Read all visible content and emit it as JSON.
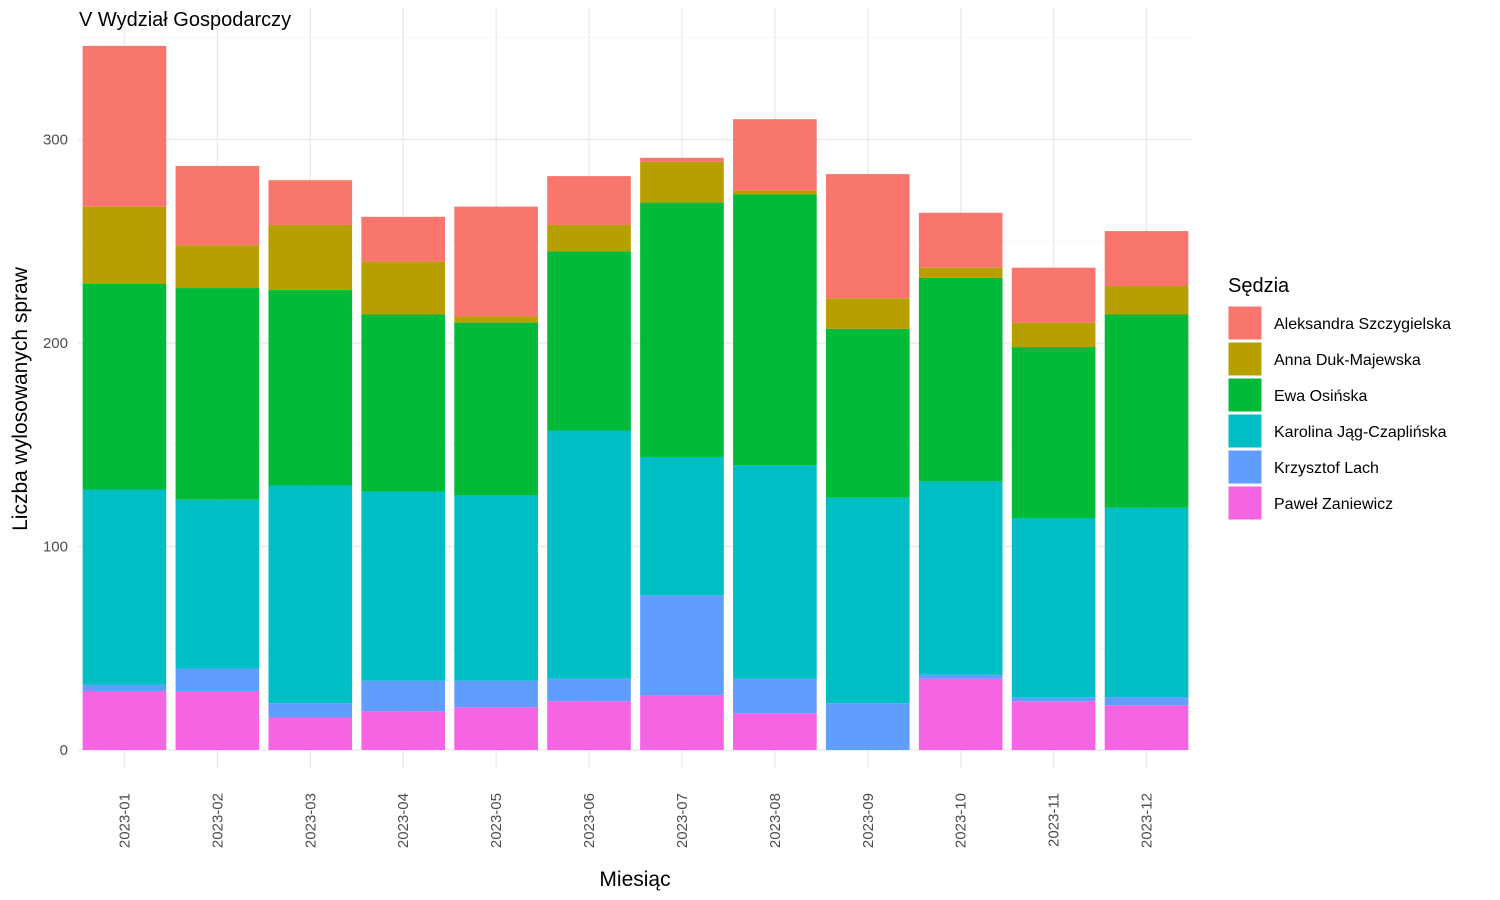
{
  "chart_data": {
    "type": "bar",
    "stacked": true,
    "title": "V Wydział Gospodarczy",
    "xlabel": "Miesiąc",
    "ylabel": "Liczba wylosowanych spraw",
    "ylim": [
      0,
      350
    ],
    "yticks": [
      0,
      100,
      200,
      300
    ],
    "grid": true,
    "legend_position": "right",
    "legend_title": "Sędzia",
    "categories": [
      "2023-01",
      "2023-02",
      "2023-03",
      "2023-04",
      "2023-05",
      "2023-06",
      "2023-07",
      "2023-08",
      "2023-09",
      "2023-10",
      "2023-11",
      "2023-12"
    ],
    "stack_order": [
      "Paweł Zaniewicz",
      "Krzysztof Lach",
      "Karolina Jąg-Czaplińska",
      "Ewa Osińska",
      "Anna Duk-Majewska",
      "Aleksandra Szczygielska"
    ],
    "series": [
      {
        "name": "Aleksandra Szczygielska",
        "color": "#F8766D",
        "values": [
          79,
          39,
          22,
          22,
          54,
          24,
          2,
          35,
          61,
          27,
          27,
          27
        ]
      },
      {
        "name": "Anna Duk-Majewska",
        "color": "#B79F00",
        "values": [
          38,
          21,
          32,
          26,
          3,
          13,
          20,
          2,
          15,
          5,
          12,
          14
        ]
      },
      {
        "name": "Ewa Osińska",
        "color": "#00BA38",
        "values": [
          101,
          104,
          96,
          87,
          85,
          88,
          125,
          133,
          83,
          100,
          84,
          95
        ]
      },
      {
        "name": "Karolina Jąg-Czaplińska",
        "color": "#00BFC4",
        "values": [
          96,
          83,
          107,
          93,
          91,
          122,
          68,
          105,
          101,
          95,
          88,
          93
        ]
      },
      {
        "name": "Krzysztof Lach",
        "color": "#619CFF",
        "values": [
          3,
          11,
          7,
          15,
          13,
          11,
          49,
          17,
          23,
          2,
          2,
          4
        ]
      },
      {
        "name": "Paweł Zaniewicz",
        "color": "#F564E3",
        "values": [
          29,
          29,
          16,
          19,
          21,
          24,
          27,
          18,
          0,
          35,
          24,
          22
        ]
      }
    ]
  }
}
